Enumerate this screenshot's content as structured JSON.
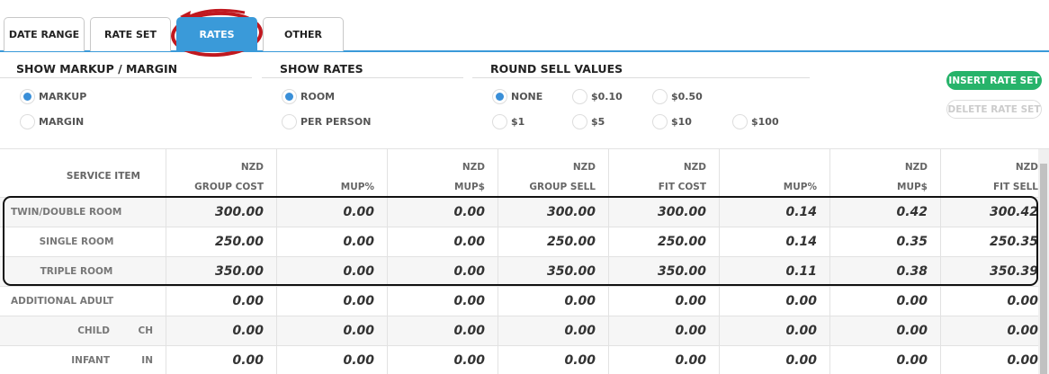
{
  "tabs": [
    "DATE RANGE",
    "RATE SET",
    "RATES",
    "OTHER"
  ],
  "active_tab": 2,
  "options": [
    {
      "title": "SHOW MARKUP / MARGIN",
      "choices": [
        {
          "label": "MARKUP",
          "selected": true
        },
        {
          "label": "MARGIN",
          "selected": false
        }
      ]
    },
    {
      "title": "SHOW RATES",
      "choices": [
        {
          "label": "ROOM",
          "selected": true
        },
        {
          "label": "PER PERSON",
          "selected": false
        }
      ]
    },
    {
      "title": "ROUND SELL VALUES",
      "choices": [
        {
          "label": "NONE",
          "selected": true
        },
        {
          "label": "$0.10",
          "selected": false
        },
        {
          "label": "$0.50",
          "selected": false
        },
        {
          "label": "$1",
          "selected": false
        },
        {
          "label": "$5",
          "selected": false
        },
        {
          "label": "$10",
          "selected": false
        },
        {
          "label": "$100",
          "selected": false
        }
      ]
    }
  ],
  "buttons": [
    {
      "label": "INSERT RATE SET",
      "enabled": true
    },
    {
      "label": "DELETE RATE SET",
      "enabled": false
    }
  ],
  "table": {
    "item_header": "SERVICE ITEM",
    "columns": [
      {
        "currency": "NZD",
        "label": "GROUP COST"
      },
      {
        "label": "MUP%"
      },
      {
        "currency": "NZD",
        "label": "MUP$"
      },
      {
        "currency": "NZD",
        "label": "GROUP SELL"
      },
      {
        "currency": "NZD",
        "label": "FIT COST"
      },
      {
        "label": "MUP%"
      },
      {
        "currency": "NZD",
        "label": "MUP$"
      },
      {
        "currency": "NZD",
        "label": "FIT SELL"
      }
    ],
    "rows": [
      {
        "item": "TWIN/DOUBLE ROOM",
        "values": [
          "300.00",
          "0.00",
          "0.00",
          "300.00",
          "300.00",
          "0.14",
          "0.42",
          "300.42"
        ]
      },
      {
        "item": "SINGLE ROOM",
        "values": [
          "250.00",
          "0.00",
          "0.00",
          "250.00",
          "250.00",
          "0.14",
          "0.35",
          "250.35"
        ]
      },
      {
        "item": "TRIPLE ROOM",
        "values": [
          "350.00",
          "0.00",
          "0.00",
          "350.00",
          "350.00",
          "0.11",
          "0.38",
          "350.39"
        ]
      },
      {
        "item": "ADDITIONAL ADULT",
        "values": [
          "0.00",
          "0.00",
          "0.00",
          "0.00",
          "0.00",
          "0.00",
          "0.00",
          "0.00"
        ]
      },
      {
        "item": "CHILD",
        "code": "CH",
        "values": [
          "0.00",
          "0.00",
          "0.00",
          "0.00",
          "0.00",
          "0.00",
          "0.00",
          "0.00"
        ]
      },
      {
        "item": "INFANT",
        "code": "IN",
        "values": [
          "0.00",
          "0.00",
          "0.00",
          "0.00",
          "0.00",
          "0.00",
          "0.00",
          "0.00"
        ]
      }
    ]
  }
}
